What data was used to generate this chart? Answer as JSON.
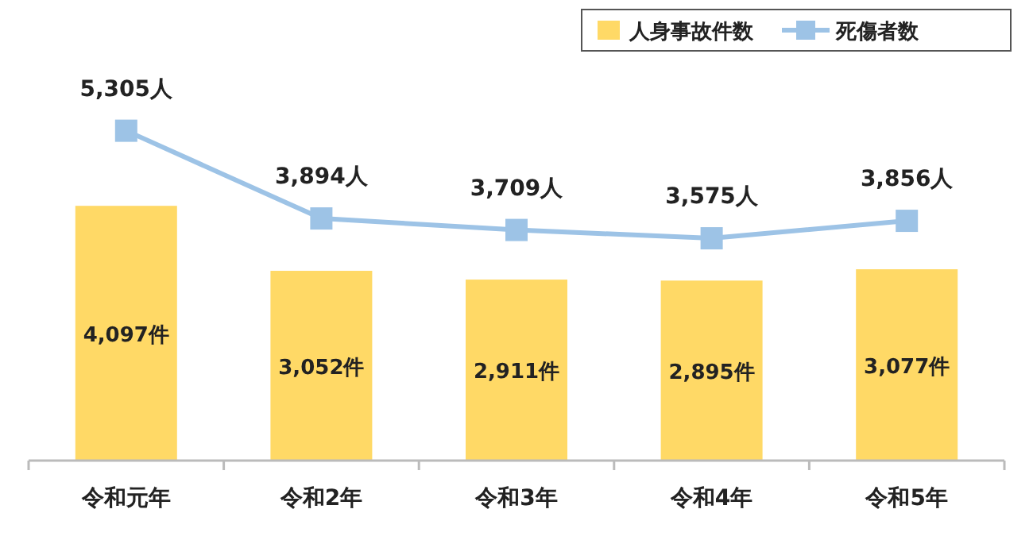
{
  "chart_data": {
    "type": "bar",
    "categories": [
      "令和元年",
      "令和2年",
      "令和3年",
      "令和4年",
      "令和5年"
    ],
    "series": [
      {
        "name": "人身事故件数",
        "color": "#ffd966",
        "values": [
          4097,
          3052,
          2911,
          2895,
          3077
        ],
        "value_labels": [
          "4,097件",
          "3,052件",
          "2,911件",
          "2,895件",
          "3,077件"
        ]
      },
      {
        "name": "死傷者数",
        "type": "line",
        "color": "#9dc3e6",
        "values": [
          5305,
          3894,
          3709,
          3575,
          3856
        ],
        "value_labels": [
          "5,305人",
          "3,894人",
          "3,709人",
          "3,575人",
          "3,856人"
        ]
      }
    ],
    "marker": "square",
    "line_style": "solid",
    "legend": "top right",
    "grid": false
  }
}
